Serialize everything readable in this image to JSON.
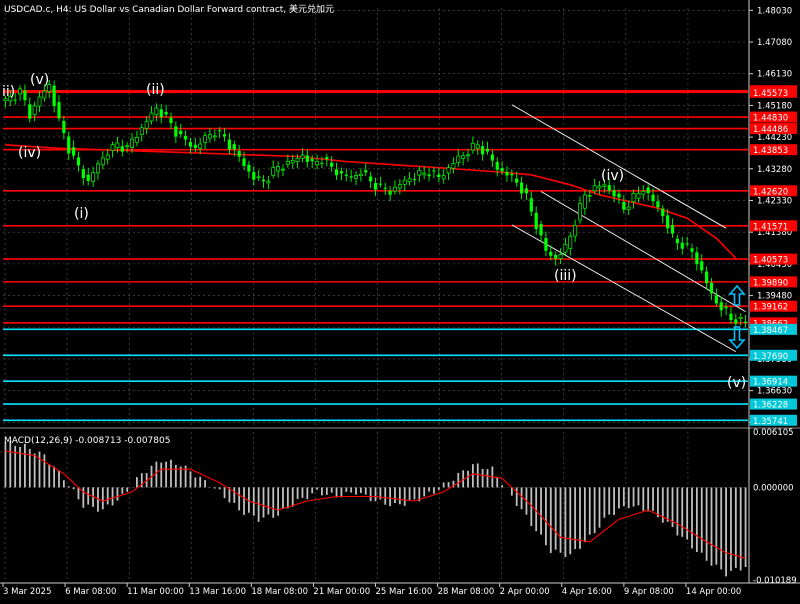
{
  "header": {
    "title": "USDCAD.c, H4:  US Dollar vs Canadian Dollar Forward contract, 美元兑加元"
  },
  "macd_header": "MACD(12,26,9) -0.008713 -0.007805",
  "colors": {
    "background": "#000000",
    "grid": "#5a5a5a",
    "candle_up": "#00ff00",
    "candle_down": "#00ff00",
    "ma": "#ff0000",
    "resistance": "#ff0000",
    "support": "#00e5ff",
    "badge_support": "#00c8d8",
    "channel": "#ffffff",
    "arrow": "#00bfff",
    "histogram": "#c0c0c0",
    "signal": "#ff0000",
    "text": "#ffffff"
  },
  "price_axis": {
    "ticks": [
      "1.48030",
      "1.47080",
      "1.46130",
      "1.45180",
      "1.44230",
      "1.43280",
      "1.42330",
      "1.41380",
      "1.40430",
      "1.39480",
      "1.38530",
      "1.37580",
      "1.36630",
      "1.35680"
    ]
  },
  "macd_axis": {
    "ticks": [
      "0.006105",
      "0.000000",
      "-0.010189"
    ]
  },
  "time_axis": {
    "labels": [
      "3 Mar 2025",
      "6 Mar 08:00",
      "11 Mar 00:00",
      "13 Mar 16:00",
      "18 Mar 08:00",
      "21 Mar 00:00",
      "25 Mar 16:00",
      "28 Mar 08:00",
      "2 Apr 00:00",
      "4 Apr 16:00",
      "9 Apr 08:00",
      "14 Apr 00:00"
    ]
  },
  "levels": {
    "resistance": [
      "1.45619",
      "1.44486",
      "1.45573",
      "1.44830",
      "1.43853",
      "1.42620",
      "1.41571",
      "1.40573",
      "1.39890",
      "1.39162",
      "1.38662"
    ],
    "support": [
      "1.38467",
      "1.37690",
      "1.36914",
      "1.36228",
      "1.35741"
    ]
  },
  "wave_labels": [
    "ii)",
    "(v)",
    "(ii)",
    "(iv)",
    "(i)",
    "(iii)",
    "(iv)",
    "(v)"
  ],
  "arrows": [
    "up-arrow-icon",
    "down-arrow-icon"
  ],
  "chart_data": {
    "type": "candlestick",
    "symbol": "USDCAD.c",
    "timeframe": "H4",
    "ylim": [
      1.356,
      1.481
    ],
    "close_path": [
      [
        0,
        1.453
      ],
      [
        3,
        1.456
      ],
      [
        5,
        1.449
      ],
      [
        7,
        1.454
      ],
      [
        9,
        1.458
      ],
      [
        11,
        1.447
      ],
      [
        13,
        1.439
      ],
      [
        15,
        1.433
      ],
      [
        17,
        1.429
      ],
      [
        19,
        1.434
      ],
      [
        21,
        1.438
      ],
      [
        23,
        1.44
      ],
      [
        25,
        1.439
      ],
      [
        27,
        1.443
      ],
      [
        29,
        1.447
      ],
      [
        31,
        1.451
      ],
      [
        33,
        1.448
      ],
      [
        35,
        1.444
      ],
      [
        37,
        1.441
      ],
      [
        39,
        1.439
      ],
      [
        41,
        1.442
      ],
      [
        43,
        1.444
      ],
      [
        45,
        1.442
      ],
      [
        47,
        1.438
      ],
      [
        49,
        1.434
      ],
      [
        51,
        1.43
      ],
      [
        53,
        1.429
      ],
      [
        55,
        1.432
      ],
      [
        57,
        1.434
      ],
      [
        59,
        1.435
      ],
      [
        61,
        1.437
      ],
      [
        63,
        1.434
      ],
      [
        65,
        1.436
      ],
      [
        67,
        1.433
      ],
      [
        69,
        1.431
      ],
      [
        71,
        1.43
      ],
      [
        73,
        1.432
      ],
      [
        75,
        1.429
      ],
      [
        77,
        1.427
      ],
      [
        79,
        1.426
      ],
      [
        81,
        1.428
      ],
      [
        83,
        1.43
      ],
      [
        85,
        1.431
      ],
      [
        87,
        1.432
      ],
      [
        89,
        1.43
      ],
      [
        91,
        1.433
      ],
      [
        93,
        1.436
      ],
      [
        95,
        1.438
      ],
      [
        97,
        1.44
      ],
      [
        99,
        1.437
      ],
      [
        101,
        1.433
      ],
      [
        103,
        1.431
      ],
      [
        105,
        1.429
      ],
      [
        107,
        1.424
      ],
      [
        109,
        1.416
      ],
      [
        111,
        1.408
      ],
      [
        113,
        1.406
      ],
      [
        115,
        1.409
      ],
      [
        117,
        1.417
      ],
      [
        119,
        1.425
      ],
      [
        121,
        1.427
      ],
      [
        123,
        1.428
      ],
      [
        125,
        1.425
      ],
      [
        127,
        1.421
      ],
      [
        129,
        1.424
      ],
      [
        131,
        1.427
      ],
      [
        133,
        1.423
      ],
      [
        135,
        1.419
      ],
      [
        137,
        1.412
      ],
      [
        139,
        1.41
      ],
      [
        141,
        1.408
      ],
      [
        143,
        1.402
      ],
      [
        145,
        1.395
      ],
      [
        147,
        1.391
      ],
      [
        149,
        1.388
      ],
      [
        151,
        1.387
      ],
      [
        152,
        1.3866
      ]
    ],
    "ma_path": [
      [
        0,
        1.44
      ],
      [
        10,
        1.439
      ],
      [
        20,
        1.4385
      ],
      [
        30,
        1.438
      ],
      [
        40,
        1.4375
      ],
      [
        50,
        1.437
      ],
      [
        60,
        1.4365
      ],
      [
        70,
        1.435
      ],
      [
        80,
        1.434
      ],
      [
        90,
        1.433
      ],
      [
        100,
        1.432
      ],
      [
        108,
        1.431
      ],
      [
        116,
        1.428
      ],
      [
        122,
        1.425
      ],
      [
        128,
        1.423
      ],
      [
        134,
        1.421
      ],
      [
        140,
        1.418
      ],
      [
        146,
        1.412
      ],
      [
        150,
        1.406
      ]
    ],
    "channel_upper": [
      [
        104,
        1.452
      ],
      [
        148,
        1.415
      ]
    ],
    "channel_middle": [
      [
        110,
        1.426
      ],
      [
        152,
        1.39
      ]
    ],
    "channel_lower": [
      [
        104,
        1.416
      ],
      [
        150,
        1.378
      ]
    ],
    "macd_histogram_path": [
      [
        0,
        0.005
      ],
      [
        4,
        0.0045
      ],
      [
        8,
        0.0035
      ],
      [
        12,
        0.001
      ],
      [
        16,
        -0.002
      ],
      [
        20,
        -0.0025
      ],
      [
        24,
        -0.001
      ],
      [
        28,
        0.0015
      ],
      [
        32,
        0.003
      ],
      [
        36,
        0.0025
      ],
      [
        40,
        0.001
      ],
      [
        44,
        -0.0005
      ],
      [
        48,
        -0.0025
      ],
      [
        52,
        -0.0035
      ],
      [
        56,
        -0.003
      ],
      [
        60,
        -0.0015
      ],
      [
        64,
        -0.0005
      ],
      [
        68,
        -0.001
      ],
      [
        72,
        -0.0005
      ],
      [
        76,
        -0.0015
      ],
      [
        80,
        -0.002
      ],
      [
        84,
        -0.0015
      ],
      [
        88,
        -0.0005
      ],
      [
        92,
        0.001
      ],
      [
        96,
        0.0025
      ],
      [
        100,
        0.002
      ],
      [
        104,
        -0.001
      ],
      [
        108,
        -0.004
      ],
      [
        112,
        -0.007
      ],
      [
        116,
        -0.0075
      ],
      [
        120,
        -0.0055
      ],
      [
        124,
        -0.003
      ],
      [
        128,
        -0.002
      ],
      [
        132,
        -0.0025
      ],
      [
        136,
        -0.004
      ],
      [
        140,
        -0.006
      ],
      [
        144,
        -0.008
      ],
      [
        148,
        -0.0095
      ],
      [
        152,
        -0.0087
      ]
    ],
    "macd_signal_path": [
      [
        0,
        0.004
      ],
      [
        6,
        0.0035
      ],
      [
        12,
        0.0015
      ],
      [
        16,
        -0.0005
      ],
      [
        20,
        -0.0015
      ],
      [
        26,
        -0.0005
      ],
      [
        32,
        0.002
      ],
      [
        38,
        0.002
      ],
      [
        44,
        0.0005
      ],
      [
        50,
        -0.0015
      ],
      [
        56,
        -0.0025
      ],
      [
        62,
        -0.0015
      ],
      [
        68,
        -0.001
      ],
      [
        76,
        -0.001
      ],
      [
        84,
        -0.0015
      ],
      [
        90,
        -0.0005
      ],
      [
        96,
        0.0015
      ],
      [
        102,
        0.001
      ],
      [
        108,
        -0.002
      ],
      [
        114,
        -0.0055
      ],
      [
        120,
        -0.006
      ],
      [
        126,
        -0.0035
      ],
      [
        132,
        -0.0025
      ],
      [
        138,
        -0.004
      ],
      [
        144,
        -0.006
      ],
      [
        148,
        -0.0072
      ],
      [
        152,
        -0.0078
      ]
    ],
    "macd_ylim": [
      -0.0102,
      0.0061
    ]
  }
}
